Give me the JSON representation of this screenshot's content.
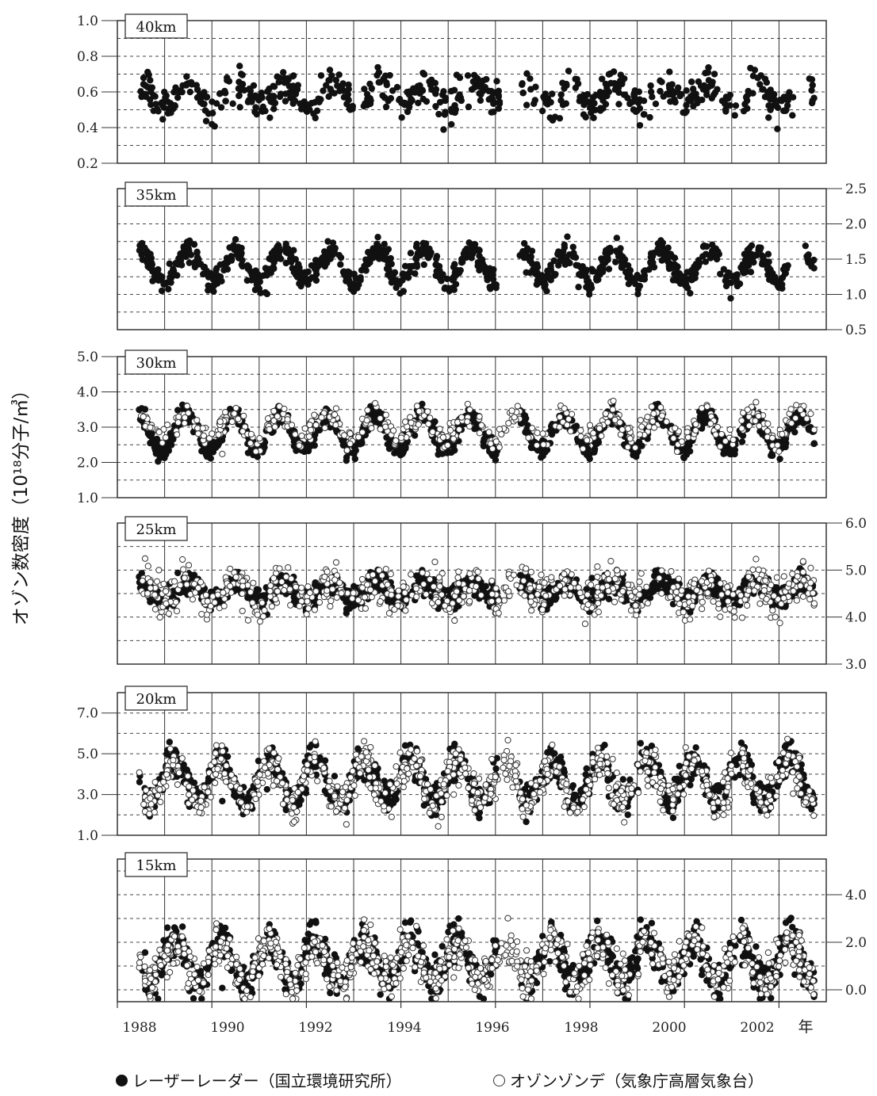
{
  "figure": {
    "y_axis_title": "オゾン数密度（10¹⁸分子/㎥）",
    "x_unit": "年",
    "x_tick_labels": [
      "1988",
      "1990",
      "1992",
      "1994",
      "1996",
      "1998",
      "2000",
      "2002"
    ]
  },
  "legend": {
    "lidar": "レーザーレーダー（国立環境研究所）",
    "sonde": "オゾンゾンデ（気象庁高層気象台）"
  },
  "colors": {
    "filled_marker": "#111111",
    "open_marker": "#333333",
    "frame": "#333333",
    "grid": "#444444"
  },
  "chart_data": [
    {
      "type": "scatter",
      "title": "40km",
      "ylim": [
        0.2,
        1.0
      ],
      "axis_side": "left",
      "y_ticks": [
        "0.2",
        "0.4",
        "0.6",
        "0.8",
        "1.0"
      ],
      "xlim": [
        1988,
        2003
      ],
      "series": [
        {
          "name": "レーザーレーダー（国立環境研究所）",
          "marker": "filled",
          "mean": 0.58,
          "amp": 0.06,
          "noise": 0.08,
          "phase": 0.55,
          "density": 55,
          "gaps": [
            [
              1993.0,
              1993.2
            ],
            [
              1995.3,
              1995.4
            ],
            [
              1996.1,
              1996.5
            ],
            [
              2002.3,
              2002.6
            ]
          ]
        }
      ]
    },
    {
      "type": "scatter",
      "title": "35km",
      "ylim": [
        0.5,
        2.5
      ],
      "axis_side": "right",
      "y_ticks": [
        "0.5",
        "1.0",
        "1.5",
        "2.0",
        "2.5"
      ],
      "xlim": [
        1988,
        2003
      ],
      "series": [
        {
          "name": "レーザーレーダー（国立環境研究所）",
          "marker": "filled",
          "mean": 1.4,
          "amp": 0.22,
          "noise": 0.14,
          "phase": 0.5,
          "density": 85,
          "gaps": [
            [
              1996.05,
              1996.5
            ],
            [
              2002.2,
              2002.55
            ]
          ]
        }
      ]
    },
    {
      "type": "scatter",
      "title": "30km",
      "ylim": [
        1.0,
        5.0
      ],
      "axis_side": "left",
      "y_ticks": [
        "1.0",
        "2.0",
        "3.0",
        "4.0",
        "5.0"
      ],
      "xlim": [
        1988,
        2003
      ],
      "series": [
        {
          "name": "レーザーレーダー（国立環境研究所）",
          "marker": "filled",
          "mean": 2.85,
          "amp": 0.5,
          "noise": 0.22,
          "phase": 0.45,
          "density": 110,
          "gaps": [
            [
              1996.05,
              1996.5
            ]
          ]
        },
        {
          "name": "オゾンゾンデ（気象庁高層気象台）",
          "marker": "open",
          "mean": 3.0,
          "amp": 0.35,
          "noise": 0.28,
          "phase": 0.45,
          "density": 40,
          "gaps": []
        }
      ]
    },
    {
      "type": "scatter",
      "title": "25km",
      "ylim": [
        3.0,
        6.0
      ],
      "axis_side": "right",
      "y_ticks": [
        "3.0",
        "4.0",
        "5.0",
        "6.0"
      ],
      "xlim": [
        1988,
        2003
      ],
      "series": [
        {
          "name": "レーザーレーダー（国立環境研究所）",
          "marker": "filled",
          "mean": 4.55,
          "amp": 0.18,
          "noise": 0.2,
          "phase": 0.5,
          "density": 110,
          "gaps": [
            [
              1996.05,
              1996.5
            ]
          ]
        },
        {
          "name": "オゾンゾンデ（気象庁高層気象台）",
          "marker": "open",
          "mean": 4.55,
          "amp": 0.2,
          "noise": 0.35,
          "phase": 0.5,
          "density": 60,
          "gaps": []
        }
      ]
    },
    {
      "type": "scatter",
      "title": "20km",
      "ylim": [
        1.0,
        8.0
      ],
      "axis_side": "left",
      "y_ticks": [
        "1.0",
        "3.0",
        "5.0",
        "7.0"
      ],
      "xlim": [
        1988,
        2003
      ],
      "series": [
        {
          "name": "レーザーレーダー（国立環境研究所）",
          "marker": "filled",
          "mean": 3.7,
          "amp": 1.0,
          "noise": 0.7,
          "phase": 0.2,
          "density": 90,
          "gaps": [
            [
              1996.05,
              1996.5
            ]
          ]
        },
        {
          "name": "オゾンゾンデ（気象庁高層気象台）",
          "marker": "open",
          "mean": 3.6,
          "amp": 1.0,
          "noise": 0.8,
          "phase": 0.2,
          "density": 70,
          "gaps": []
        }
      ]
    },
    {
      "type": "scatter",
      "title": "15km",
      "ylim": [
        -0.5,
        5.5
      ],
      "axis_side": "right",
      "y_ticks": [
        "0.0",
        "2.0",
        "4.0"
      ],
      "xlim": [
        1988,
        2003
      ],
      "series": [
        {
          "name": "レーザーレーダー（国立環境研究所）",
          "marker": "filled",
          "mean": 1.2,
          "amp": 0.9,
          "noise": 0.7,
          "phase": 0.2,
          "density": 85,
          "gaps": [
            [
              1996.05,
              1996.5
            ]
          ]
        },
        {
          "name": "オゾンゾンデ（気象庁高層気象台）",
          "marker": "open",
          "mean": 1.2,
          "amp": 0.8,
          "noise": 0.75,
          "phase": 0.2,
          "density": 75,
          "gaps": []
        }
      ]
    }
  ]
}
